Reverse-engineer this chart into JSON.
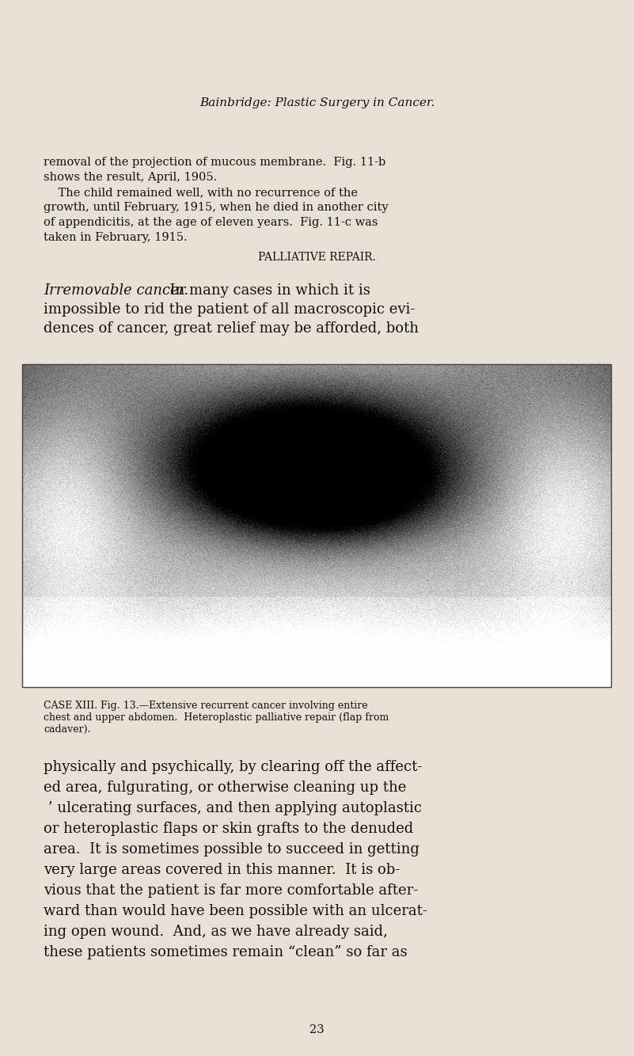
{
  "background_color": "#e8e0d4",
  "page_width": 8.01,
  "page_height": 13.34,
  "dpi": 100,
  "header_italic": "Bainbridge: Plastic Surgery in Cancer.",
  "para1": "removal of the projection of mucous membrane.  Fig. 11-b\nshows the result, April, 1905.\n    The child remained well, with no recurrence of the\ngrowth, until February, 1915, when he died in another city\nof appendicitis, at the age of eleven years.  Fig. 11-c was\ntaken in February, 1915.",
  "section_title": "PALLIATIVE REPAIR.",
  "para2_italic": "Irremovable cancer.",
  "para2_normal": "  In many cases in which it is\nimpossible to rid the patient of all macroscopic evi-\ndences of cancer, great relief may be afforded, both",
  "caption_small": "CASE XIII.",
  "caption_normal": "  Fig. 13.—Extensive recurrent cancer involving entire\nchest and upper abdomen.  Heteroplastic palliative repair (flap from\ncadaver).",
  "para3_line1": "physically and psychically, by clearing off the affect-",
  "para3_line2": "ed area, fulgurating, or otherwise cleaning up the",
  "para3_line3": " ’ ulcerating surfaces, and then applying autoplastic",
  "para3_line4": "or heteroplastic flaps or skin grafts to the denuded",
  "para3_line5": "area.  It is sometimes possible to succeed in getting",
  "para3_line6": "very large areas covered in this manner.  It is ob-",
  "para3_line7": "vious that the patient is far more comfortable after-",
  "para3_line8": "ward than would have been possible with an ulcerat-",
  "para3_line9": "ing open wound.  And, as we have already said,",
  "para3_line10": "these patients sometimes remain “clean” so far as",
  "page_number": "23",
  "text_color": "#111111",
  "border_color": "#444444",
  "img_bg": "#888888"
}
